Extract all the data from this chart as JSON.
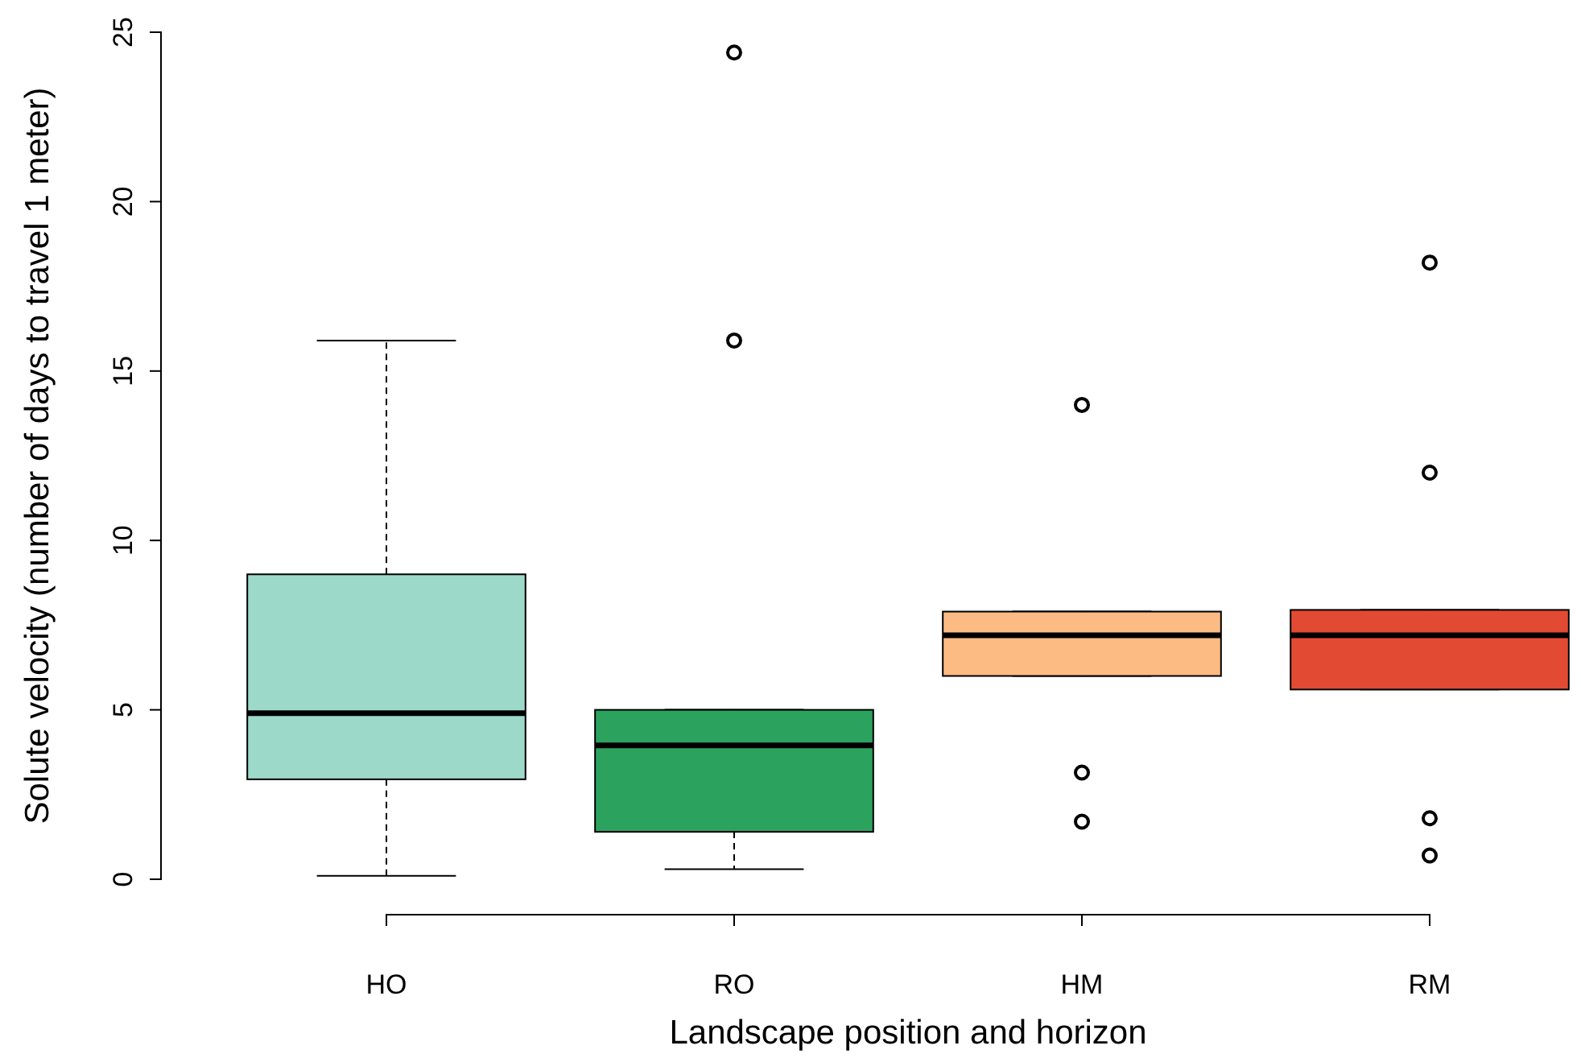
{
  "chart_data": {
    "type": "box",
    "xlabel": "Landscape position and horizon",
    "ylabel": "Solute velocity (number of days to travel 1 meter)",
    "categories": [
      "HO",
      "RO",
      "HM",
      "RM"
    ],
    "colors": [
      "#9dd9c9",
      "#2ca25f",
      "#fdbb84",
      "#e34a33"
    ],
    "boxes": [
      {
        "low": 0.1,
        "q1": 2.95,
        "median": 4.9,
        "q3": 9.0,
        "high": 15.9
      },
      {
        "low": 0.3,
        "q1": 1.4,
        "median": 3.95,
        "q3": 5.0,
        "high": 5.0,
        "outliers": [
          15.9,
          24.4
        ]
      },
      {
        "low": 6.0,
        "q1": 6.0,
        "median": 7.2,
        "q3": 7.9,
        "high": 7.9,
        "outliers": [
          14.0,
          3.15,
          1.7
        ]
      },
      {
        "low": 5.6,
        "q1": 5.6,
        "median": 7.2,
        "q3": 7.95,
        "high": 7.95,
        "outliers": [
          18.2,
          12.0,
          1.8,
          0.7
        ]
      }
    ],
    "ylim": [
      0,
      25
    ],
    "yticks": [
      0,
      5,
      10,
      15,
      20,
      25
    ]
  }
}
